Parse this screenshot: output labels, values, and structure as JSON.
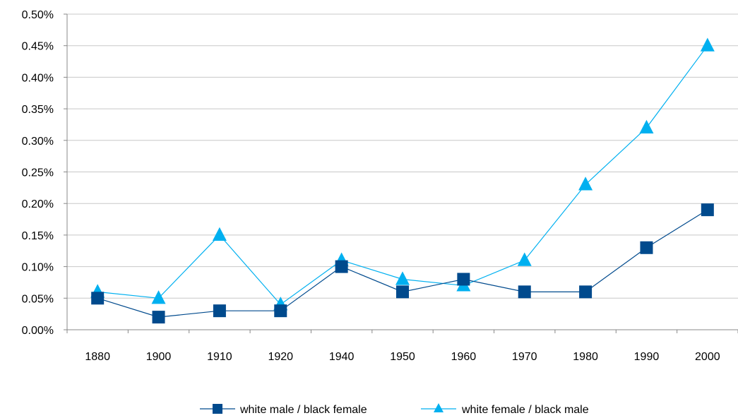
{
  "chart_data": {
    "type": "line",
    "title": "",
    "xlabel": "",
    "ylabel": "",
    "categories": [
      "1880",
      "1900",
      "1910",
      "1920",
      "1940",
      "1950",
      "1960",
      "1970",
      "1980",
      "1990",
      "2000"
    ],
    "ylim": [
      0,
      0.5
    ],
    "yticks": [
      0,
      0.05,
      0.1,
      0.15,
      0.2,
      0.25,
      0.3,
      0.35,
      0.4,
      0.45,
      0.5
    ],
    "ytick_labels": [
      "0.00%",
      "0.05%",
      "0.10%",
      "0.15%",
      "0.20%",
      "0.25%",
      "0.30%",
      "0.35%",
      "0.40%",
      "0.45%",
      "0.50%"
    ],
    "y_unit": "percent",
    "grid": "horizontal",
    "legend_position": "bottom",
    "series": [
      {
        "name": "white male / black female",
        "marker": "square",
        "color": "#004A8D",
        "values": [
          0.05,
          0.02,
          0.03,
          0.03,
          0.1,
          0.06,
          0.08,
          0.06,
          0.06,
          0.13,
          0.19
        ]
      },
      {
        "name": "white female / black male",
        "marker": "triangle",
        "color": "#00B0F0",
        "values": [
          0.06,
          0.05,
          0.15,
          0.04,
          0.11,
          0.08,
          0.07,
          0.11,
          0.23,
          0.32,
          0.45
        ]
      }
    ]
  }
}
